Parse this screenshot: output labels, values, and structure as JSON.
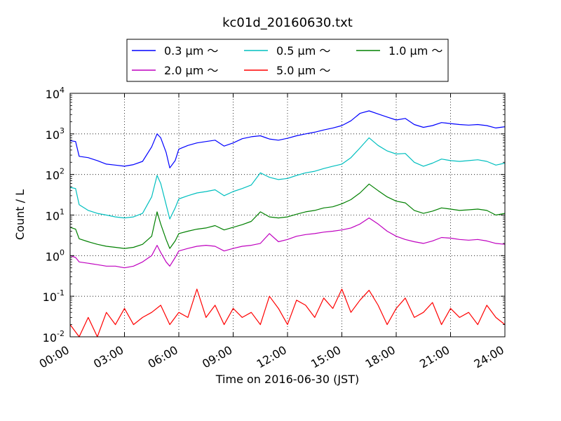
{
  "chart_data": {
    "type": "line",
    "title": "kc01d_20160630.txt",
    "xlabel": "Time on 2016-06-30 (JST)",
    "ylabel": "Count / L",
    "yscale": "log",
    "xlim_hours": [
      0,
      24
    ],
    "ylim": [
      0.01,
      10000
    ],
    "grid": true,
    "legend_position": "top-center, above plot",
    "x_ticks": [
      "00:00",
      "03:00",
      "06:00",
      "09:00",
      "12:00",
      "15:00",
      "18:00",
      "21:00",
      "24:00"
    ],
    "y_ticks": [
      {
        "base": "10",
        "exp": "-2",
        "value": 0.01
      },
      {
        "base": "10",
        "exp": "-1",
        "value": 0.1
      },
      {
        "base": "10",
        "exp": "0",
        "value": 1
      },
      {
        "base": "10",
        "exp": "1",
        "value": 10
      },
      {
        "base": "10",
        "exp": "2",
        "value": 100
      },
      {
        "base": "10",
        "exp": "3",
        "value": 1000
      },
      {
        "base": "10",
        "exp": "4",
        "value": 10000
      }
    ],
    "series": [
      {
        "name": "0.3 μm ～",
        "color": "#0000ff",
        "points": [
          [
            0,
            680
          ],
          [
            0.3,
            650
          ],
          [
            0.5,
            280
          ],
          [
            1,
            260
          ],
          [
            1.5,
            220
          ],
          [
            2,
            180
          ],
          [
            2.5,
            170
          ],
          [
            3,
            160
          ],
          [
            3.5,
            175
          ],
          [
            4,
            210
          ],
          [
            4.5,
            480
          ],
          [
            4.8,
            1000
          ],
          [
            5,
            800
          ],
          [
            5.3,
            350
          ],
          [
            5.5,
            145
          ],
          [
            5.8,
            220
          ],
          [
            6,
            420
          ],
          [
            6.5,
            520
          ],
          [
            7,
            600
          ],
          [
            7.5,
            650
          ],
          [
            8,
            700
          ],
          [
            8.5,
            500
          ],
          [
            9,
            600
          ],
          [
            9.5,
            760
          ],
          [
            10,
            850
          ],
          [
            10.5,
            900
          ],
          [
            11,
            750
          ],
          [
            11.5,
            700
          ],
          [
            12,
            780
          ],
          [
            12.5,
            900
          ],
          [
            13,
            1000
          ],
          [
            13.5,
            1100
          ],
          [
            14,
            1250
          ],
          [
            14.5,
            1400
          ],
          [
            15,
            1600
          ],
          [
            15.5,
            2100
          ],
          [
            16,
            3200
          ],
          [
            16.5,
            3700
          ],
          [
            17,
            3100
          ],
          [
            17.5,
            2600
          ],
          [
            18,
            2200
          ],
          [
            18.5,
            2400
          ],
          [
            19,
            1700
          ],
          [
            19.5,
            1450
          ],
          [
            20,
            1600
          ],
          [
            20.5,
            1900
          ],
          [
            21,
            1800
          ],
          [
            21.5,
            1700
          ],
          [
            22,
            1650
          ],
          [
            22.5,
            1700
          ],
          [
            23,
            1600
          ],
          [
            23.5,
            1400
          ],
          [
            24,
            1500
          ]
        ]
      },
      {
        "name": "0.5 μm ～",
        "color": "#00bfbf",
        "points": [
          [
            0,
            48
          ],
          [
            0.3,
            45
          ],
          [
            0.5,
            18
          ],
          [
            1,
            13
          ],
          [
            1.5,
            11
          ],
          [
            2,
            10
          ],
          [
            2.5,
            9
          ],
          [
            3,
            8.5
          ],
          [
            3.5,
            9
          ],
          [
            4,
            11
          ],
          [
            4.5,
            28
          ],
          [
            4.8,
            95
          ],
          [
            5,
            60
          ],
          [
            5.3,
            18
          ],
          [
            5.5,
            8
          ],
          [
            5.8,
            15
          ],
          [
            6,
            25
          ],
          [
            6.5,
            30
          ],
          [
            7,
            35
          ],
          [
            7.5,
            38
          ],
          [
            8,
            42
          ],
          [
            8.5,
            30
          ],
          [
            9,
            38
          ],
          [
            9.5,
            45
          ],
          [
            10,
            55
          ],
          [
            10.5,
            110
          ],
          [
            11,
            85
          ],
          [
            11.5,
            75
          ],
          [
            12,
            80
          ],
          [
            12.5,
            95
          ],
          [
            13,
            110
          ],
          [
            13.5,
            120
          ],
          [
            14,
            140
          ],
          [
            14.5,
            160
          ],
          [
            15,
            180
          ],
          [
            15.5,
            260
          ],
          [
            16,
            450
          ],
          [
            16.5,
            800
          ],
          [
            17,
            520
          ],
          [
            17.5,
            380
          ],
          [
            18,
            320
          ],
          [
            18.5,
            330
          ],
          [
            19,
            200
          ],
          [
            19.5,
            160
          ],
          [
            20,
            190
          ],
          [
            20.5,
            240
          ],
          [
            21,
            220
          ],
          [
            21.5,
            210
          ],
          [
            22,
            220
          ],
          [
            22.5,
            230
          ],
          [
            23,
            210
          ],
          [
            23.5,
            170
          ],
          [
            24,
            190
          ]
        ]
      },
      {
        "name": "1.0 μm ～",
        "color": "#008000",
        "points": [
          [
            0,
            5
          ],
          [
            0.3,
            4.5
          ],
          [
            0.5,
            2.6
          ],
          [
            1,
            2.2
          ],
          [
            1.5,
            1.9
          ],
          [
            2,
            1.7
          ],
          [
            2.5,
            1.6
          ],
          [
            3,
            1.5
          ],
          [
            3.5,
            1.6
          ],
          [
            4,
            1.9
          ],
          [
            4.5,
            3
          ],
          [
            4.8,
            12
          ],
          [
            5,
            6
          ],
          [
            5.3,
            2.5
          ],
          [
            5.5,
            1.5
          ],
          [
            5.8,
            2.3
          ],
          [
            6,
            3.5
          ],
          [
            6.5,
            4
          ],
          [
            7,
            4.5
          ],
          [
            7.5,
            4.8
          ],
          [
            8,
            5.5
          ],
          [
            8.5,
            4.3
          ],
          [
            9,
            5
          ],
          [
            9.5,
            5.8
          ],
          [
            10,
            7
          ],
          [
            10.5,
            12
          ],
          [
            11,
            9
          ],
          [
            11.5,
            8.5
          ],
          [
            12,
            9
          ],
          [
            12.5,
            10.5
          ],
          [
            13,
            12
          ],
          [
            13.5,
            13
          ],
          [
            14,
            15
          ],
          [
            14.5,
            16
          ],
          [
            15,
            19
          ],
          [
            15.5,
            24
          ],
          [
            16,
            35
          ],
          [
            16.5,
            58
          ],
          [
            17,
            40
          ],
          [
            17.5,
            28
          ],
          [
            18,
            22
          ],
          [
            18.5,
            20
          ],
          [
            19,
            13
          ],
          [
            19.5,
            11
          ],
          [
            20,
            12.5
          ],
          [
            20.5,
            15
          ],
          [
            21,
            14
          ],
          [
            21.5,
            13
          ],
          [
            22,
            13.5
          ],
          [
            22.5,
            14
          ],
          [
            23,
            13
          ],
          [
            23.5,
            10
          ],
          [
            24,
            11
          ]
        ]
      },
      {
        "name": "2.0 μm ～",
        "color": "#bf00bf",
        "points": [
          [
            0,
            1
          ],
          [
            0.3,
            0.9
          ],
          [
            0.5,
            0.7
          ],
          [
            1,
            0.65
          ],
          [
            1.5,
            0.6
          ],
          [
            2,
            0.55
          ],
          [
            2.5,
            0.55
          ],
          [
            3,
            0.5
          ],
          [
            3.5,
            0.55
          ],
          [
            4,
            0.7
          ],
          [
            4.5,
            1
          ],
          [
            4.8,
            1.8
          ],
          [
            5,
            1.2
          ],
          [
            5.3,
            0.7
          ],
          [
            5.5,
            0.55
          ],
          [
            5.8,
            0.9
          ],
          [
            6,
            1.3
          ],
          [
            6.5,
            1.5
          ],
          [
            7,
            1.7
          ],
          [
            7.5,
            1.8
          ],
          [
            8,
            1.7
          ],
          [
            8.5,
            1.3
          ],
          [
            9,
            1.5
          ],
          [
            9.5,
            1.7
          ],
          [
            10,
            1.8
          ],
          [
            10.5,
            2
          ],
          [
            11,
            3.5
          ],
          [
            11.5,
            2.2
          ],
          [
            12,
            2.5
          ],
          [
            12.5,
            3
          ],
          [
            13,
            3.3
          ],
          [
            13.5,
            3.5
          ],
          [
            14,
            3.8
          ],
          [
            14.5,
            4
          ],
          [
            15,
            4.3
          ],
          [
            15.5,
            4.8
          ],
          [
            16,
            6
          ],
          [
            16.5,
            8.5
          ],
          [
            17,
            6
          ],
          [
            17.5,
            4
          ],
          [
            18,
            3
          ],
          [
            18.5,
            2.5
          ],
          [
            19,
            2.2
          ],
          [
            19.5,
            2
          ],
          [
            20,
            2.3
          ],
          [
            20.5,
            2.8
          ],
          [
            21,
            2.7
          ],
          [
            21.5,
            2.5
          ],
          [
            22,
            2.4
          ],
          [
            22.5,
            2.5
          ],
          [
            23,
            2.3
          ],
          [
            23.5,
            2
          ],
          [
            24,
            1.9
          ]
        ]
      },
      {
        "name": "5.0 μm ～",
        "color": "#ff0000",
        "points": [
          [
            0,
            0.02
          ],
          [
            0.5,
            0.01
          ],
          [
            1,
            0.03
          ],
          [
            1.5,
            0.01
          ],
          [
            2,
            0.04
          ],
          [
            2.5,
            0.02
          ],
          [
            3,
            0.05
          ],
          [
            3.5,
            0.02
          ],
          [
            4,
            0.03
          ],
          [
            4.5,
            0.04
          ],
          [
            5,
            0.06
          ],
          [
            5.5,
            0.02
          ],
          [
            6,
            0.04
          ],
          [
            6.5,
            0.03
          ],
          [
            7,
            0.15
          ],
          [
            7.5,
            0.03
          ],
          [
            8,
            0.06
          ],
          [
            8.5,
            0.02
          ],
          [
            9,
            0.05
          ],
          [
            9.5,
            0.03
          ],
          [
            10,
            0.04
          ],
          [
            10.5,
            0.02
          ],
          [
            11,
            0.1
          ],
          [
            11.5,
            0.05
          ],
          [
            12,
            0.02
          ],
          [
            12.5,
            0.08
          ],
          [
            13,
            0.06
          ],
          [
            13.5,
            0.03
          ],
          [
            14,
            0.09
          ],
          [
            14.5,
            0.05
          ],
          [
            15,
            0.15
          ],
          [
            15.5,
            0.04
          ],
          [
            16,
            0.08
          ],
          [
            16.5,
            0.14
          ],
          [
            17,
            0.06
          ],
          [
            17.5,
            0.02
          ],
          [
            18,
            0.05
          ],
          [
            18.5,
            0.09
          ],
          [
            19,
            0.03
          ],
          [
            19.5,
            0.04
          ],
          [
            20,
            0.07
          ],
          [
            20.5,
            0.02
          ],
          [
            21,
            0.05
          ],
          [
            21.5,
            0.03
          ],
          [
            22,
            0.04
          ],
          [
            22.5,
            0.02
          ],
          [
            23,
            0.06
          ],
          [
            23.5,
            0.03
          ],
          [
            24,
            0.02
          ]
        ]
      }
    ]
  }
}
